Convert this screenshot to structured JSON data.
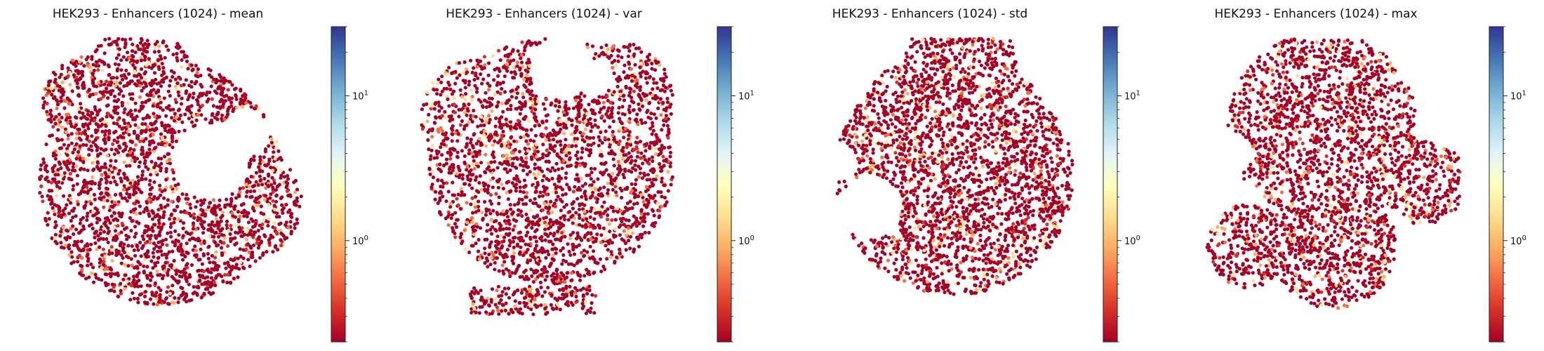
{
  "chart_data": [
    {
      "type": "scatter",
      "title": "HEK293 - Enhancers (1024) - mean",
      "xlabel": "",
      "ylabel": "",
      "colorbar": {
        "scale": "log",
        "colormap": "RdYlBu",
        "range": [
          0.2,
          30
        ],
        "ticks": [
          {
            "value": 1,
            "label": "10^0"
          },
          {
            "value": 10,
            "label": "10^1"
          }
        ]
      },
      "dominant_color": "#a50026",
      "n_points": 6000
    },
    {
      "type": "scatter",
      "title": "HEK293 - Enhancers (1024) - var",
      "xlabel": "",
      "ylabel": "",
      "colorbar": {
        "scale": "log",
        "colormap": "RdYlBu",
        "range": [
          0.2,
          30
        ],
        "ticks": [
          {
            "value": 1,
            "label": "10^0"
          },
          {
            "value": 10,
            "label": "10^1"
          }
        ]
      },
      "dominant_color": "#a50026",
      "n_points": 6000
    },
    {
      "type": "scatter",
      "title": "HEK293 - Enhancers (1024) - std",
      "xlabel": "",
      "ylabel": "",
      "colorbar": {
        "scale": "log",
        "colormap": "RdYlBu",
        "range": [
          0.2,
          30
        ],
        "ticks": [
          {
            "value": 1,
            "label": "10^0"
          },
          {
            "value": 10,
            "label": "10^1"
          }
        ]
      },
      "dominant_color": "#a50026",
      "n_points": 6000
    },
    {
      "type": "scatter",
      "title": "HEK293 - Enhancers (1024) - max",
      "xlabel": "",
      "ylabel": "",
      "colorbar": {
        "scale": "log",
        "colormap": "RdYlBu",
        "range": [
          0.2,
          30
        ],
        "ticks": [
          {
            "value": 1,
            "label": "10^0"
          },
          {
            "value": 10,
            "label": "10^1"
          }
        ]
      },
      "dominant_color": "#a50026",
      "n_points": 6000
    }
  ]
}
